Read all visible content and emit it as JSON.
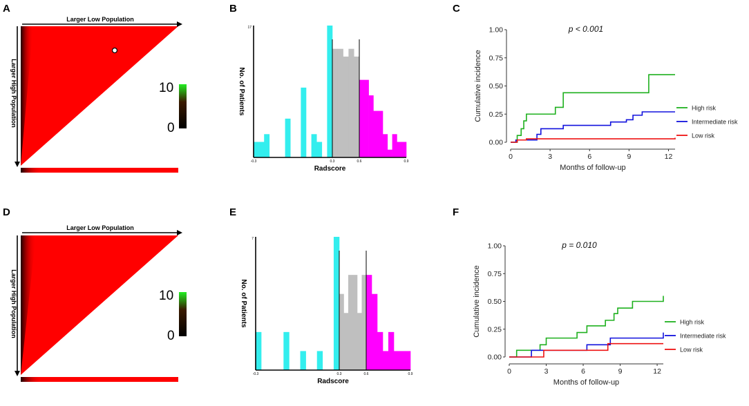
{
  "figure": {
    "panel_labels": [
      "A",
      "B",
      "C",
      "D",
      "E",
      "F"
    ]
  },
  "colors": {
    "heat_red": "#ff0000",
    "heat_dark": "#1a0000",
    "cyan": "#33eeee",
    "gray": "#bfbfbf",
    "magenta": "#ff00ff",
    "high_risk": "#1db01d",
    "intermediate_risk": "#1010dd",
    "low_risk": "#ee1111"
  },
  "chart_data": [
    {
      "panel": "A",
      "type": "heatmap",
      "x_arrow_label": "Larger Low Population",
      "y_arrow_label": "Larger High Population",
      "colorbar": {
        "min_label": "0",
        "max_label": "10",
        "range": [
          0,
          10
        ]
      },
      "optimal_cutpoint_marker": true
    },
    {
      "panel": "B",
      "type": "bar",
      "xlabel": "Radscore",
      "ylabel": "No. of Patients",
      "y_max_label": "17",
      "ylim": [
        0,
        17
      ],
      "xlim": [
        -0.3,
        0.9
      ],
      "tick_labels": [
        "-0.3",
        "0.3",
        "0.6",
        "0.9"
      ],
      "groups": [
        {
          "name": "low",
          "color_key": "cyan",
          "values": [
            2,
            2,
            3,
            0,
            0,
            0,
            5,
            0,
            0,
            9,
            0,
            3,
            2,
            0,
            17
          ]
        },
        {
          "name": "intermediate",
          "color_key": "gray",
          "values": [
            14,
            14,
            13,
            14,
            13
          ]
        },
        {
          "name": "high",
          "color_key": "magenta",
          "values": [
            10,
            10,
            8,
            6,
            6,
            3,
            1,
            3,
            2,
            2
          ]
        }
      ]
    },
    {
      "panel": "C",
      "type": "line",
      "title": "p < 0.001",
      "xlabel": "Months of follow-up",
      "ylabel": "Cumulative incidence",
      "xlim": [
        0,
        12.5
      ],
      "ylim": [
        0,
        1.0
      ],
      "x_ticks": [
        "0",
        "3",
        "6",
        "9",
        "12"
      ],
      "y_ticks": [
        "0.00",
        "0.25",
        "0.50",
        "0.75",
        "1.00"
      ],
      "legend": [
        "High risk",
        "Intermediate risk",
        "Low risk"
      ],
      "series": [
        {
          "name": "High risk",
          "color_key": "high_risk",
          "x": [
            0,
            0.5,
            0.8,
            1.0,
            1.2,
            1.5,
            3.0,
            3.4,
            4.0,
            5.7,
            10.0,
            10.5,
            12.5
          ],
          "y": [
            0,
            0.06,
            0.12,
            0.19,
            0.25,
            0.25,
            0.25,
            0.31,
            0.44,
            0.44,
            0.44,
            0.6,
            0.6
          ]
        },
        {
          "name": "Intermediate risk",
          "color_key": "intermediate_risk",
          "x": [
            0,
            0.4,
            1.5,
            2.0,
            2.3,
            4.0,
            7.0,
            7.6,
            8.3,
            8.8,
            9.3,
            10.0,
            12.5
          ],
          "y": [
            0,
            0.02,
            0.02,
            0.07,
            0.12,
            0.15,
            0.15,
            0.18,
            0.18,
            0.2,
            0.24,
            0.27,
            0.27
          ]
        },
        {
          "name": "Low risk",
          "color_key": "low_risk",
          "x": [
            0,
            0.5,
            1.2,
            12.0,
            12.5
          ],
          "y": [
            0,
            0.02,
            0.03,
            0.03,
            0.04
          ]
        }
      ]
    },
    {
      "panel": "D",
      "type": "heatmap",
      "x_arrow_label": "Larger Low Population",
      "y_arrow_label": "Larger High Population",
      "colorbar": {
        "min_label": "0",
        "max_label": "10",
        "range": [
          0,
          10
        ]
      },
      "optimal_cutpoint_marker": false
    },
    {
      "panel": "E",
      "type": "bar",
      "xlabel": "Radscore",
      "ylabel": "No. of Patients",
      "y_max_label": "7",
      "ylim": [
        0,
        7
      ],
      "xlim": [
        -0.3,
        0.9
      ],
      "tick_labels": [
        "-0.3",
        "0.3",
        "0.6",
        "0.9"
      ],
      "groups": [
        {
          "name": "low",
          "color_key": "cyan",
          "values": [
            2,
            0,
            0,
            0,
            0,
            2,
            0,
            0,
            1,
            0,
            0,
            1,
            0,
            0,
            7
          ]
        },
        {
          "name": "intermediate",
          "color_key": "gray",
          "values": [
            4,
            3,
            5,
            5,
            3,
            5
          ]
        },
        {
          "name": "high",
          "color_key": "magenta",
          "values": [
            5,
            4,
            2,
            1,
            2,
            1,
            1,
            1
          ]
        }
      ]
    },
    {
      "panel": "F",
      "type": "line",
      "title": "p = 0.010",
      "xlabel": "Months of follow-up",
      "ylabel": "Cumulative incidence",
      "xlim": [
        0,
        12.5
      ],
      "ylim": [
        0,
        1.0
      ],
      "x_ticks": [
        "0",
        "3",
        "6",
        "9",
        "12"
      ],
      "y_ticks": [
        "0.00",
        "0.25",
        "0.50",
        "0.75",
        "1.00"
      ],
      "legend": [
        "High risk",
        "Intermediate risk",
        "Low risk"
      ],
      "series": [
        {
          "name": "High risk",
          "color_key": "high_risk",
          "x": [
            0,
            0.6,
            2.0,
            2.5,
            3.0,
            4.0,
            5.5,
            6.3,
            7.0,
            7.8,
            8.5,
            8.8,
            9.0,
            10.0,
            12.5
          ],
          "y": [
            0,
            0.06,
            0.06,
            0.11,
            0.17,
            0.17,
            0.22,
            0.28,
            0.28,
            0.33,
            0.39,
            0.44,
            0.44,
            0.5,
            0.55
          ]
        },
        {
          "name": "Intermediate risk",
          "color_key": "intermediate_risk",
          "x": [
            0,
            1.8,
            4.0,
            6.3,
            8.2,
            12.0,
            12.5
          ],
          "y": [
            0,
            0.06,
            0.06,
            0.11,
            0.17,
            0.17,
            0.22
          ]
        },
        {
          "name": "Low risk",
          "color_key": "low_risk",
          "x": [
            0,
            2.8,
            8.0,
            12.5
          ],
          "y": [
            0,
            0.06,
            0.12,
            0.12
          ]
        }
      ]
    }
  ]
}
